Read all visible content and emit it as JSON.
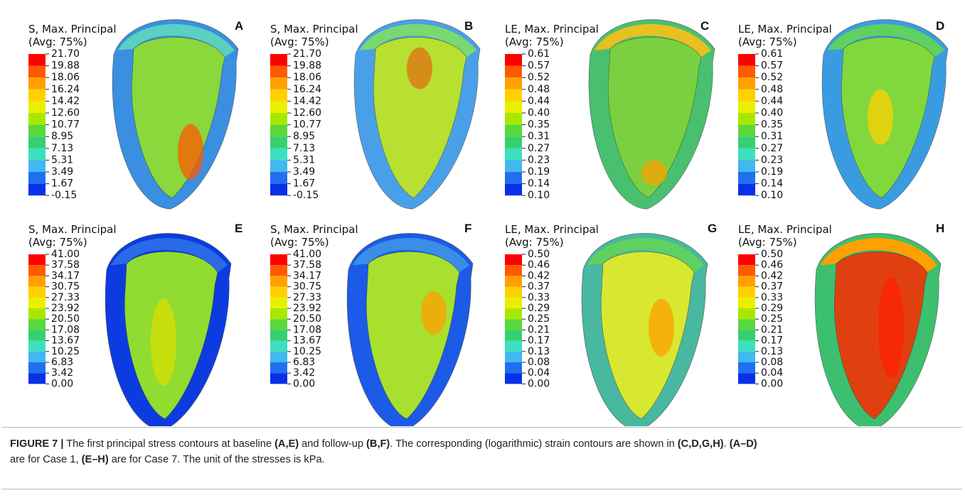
{
  "panels": [
    {
      "label": "A",
      "title": "S, Max. Principal",
      "subtitle": "(Avg: 75%)",
      "ticks": [
        "21.70",
        "19.88",
        "18.06",
        "16.24",
        "14.42",
        "12.60",
        "10.77",
        "8.95",
        "7.13",
        "5.31",
        "3.49",
        "1.67",
        "-0.15"
      ]
    },
    {
      "label": "B",
      "title": "S, Max. Principal",
      "subtitle": "(Avg: 75%)",
      "ticks": [
        "21.70",
        "19.88",
        "18.06",
        "16.24",
        "14.42",
        "12.60",
        "10.77",
        "8.95",
        "7.13",
        "5.31",
        "3.49",
        "1.67",
        "-0.15"
      ]
    },
    {
      "label": "C",
      "title": "LE, Max. Principal",
      "subtitle": "(Avg: 75%)",
      "ticks": [
        "0.61",
        "0.57",
        "0.52",
        "0.48",
        "0.44",
        "0.40",
        "0.35",
        "0.31",
        "0.27",
        "0.23",
        "0.19",
        "0.14",
        "0.10"
      ]
    },
    {
      "label": "D",
      "title": "LE, Max. Principal",
      "subtitle": "(Avg: 75%)",
      "ticks": [
        "0.61",
        "0.57",
        "0.52",
        "0.48",
        "0.44",
        "0.40",
        "0.35",
        "0.31",
        "0.27",
        "0.23",
        "0.19",
        "0.14",
        "0.10"
      ]
    },
    {
      "label": "E",
      "title": "S, Max. Principal",
      "subtitle": "(Avg: 75%)",
      "ticks": [
        "41.00",
        "37.58",
        "34.17",
        "30.75",
        "27.33",
        "23.92",
        "20.50",
        "17.08",
        "13.67",
        "10.25",
        "6.83",
        "3.42",
        "0.00"
      ]
    },
    {
      "label": "F",
      "title": "S, Max. Principal",
      "subtitle": "(Avg: 75%)",
      "ticks": [
        "41.00",
        "37.58",
        "34.17",
        "30.75",
        "27.33",
        "23.92",
        "20.50",
        "17.08",
        "13.67",
        "10.25",
        "6.83",
        "3.42",
        "0.00"
      ]
    },
    {
      "label": "G",
      "title": "LE, Max. Principal",
      "subtitle": "(Avg: 75%)",
      "ticks": [
        "0.50",
        "0.46",
        "0.42",
        "0.37",
        "0.33",
        "0.29",
        "0.25",
        "0.21",
        "0.17",
        "0.13",
        "0.08",
        "0.04",
        "0.00"
      ]
    },
    {
      "label": "H",
      "title": "LE, Max. Principal",
      "subtitle": "(Avg: 75%)",
      "ticks": [
        "0.50",
        "0.46",
        "0.42",
        "0.37",
        "0.33",
        "0.29",
        "0.25",
        "0.21",
        "0.17",
        "0.13",
        "0.08",
        "0.04",
        "0.00"
      ]
    }
  ],
  "caption": [
    [
      {
        "text": "FIGURE 7 |",
        "bold": true
      },
      {
        "text": " The first principal stress contours at baseline ",
        "bold": false
      },
      {
        "text": "(A,E)",
        "bold": true
      },
      {
        "text": " and follow-up ",
        "bold": false
      },
      {
        "text": "(B,F)",
        "bold": true
      },
      {
        "text": ". The corresponding (logarithmic) strain contours are shown in ",
        "bold": false
      },
      {
        "text": "(C,D,G,H)",
        "bold": true
      },
      {
        "text": ". ",
        "bold": false
      },
      {
        "text": "(A–D)",
        "bold": true
      }
    ],
    [
      {
        "text": "are for Case 1, ",
        "bold": false
      },
      {
        "text": "(E–H)",
        "bold": true
      },
      {
        "text": " are for Case 7. The unit of the stresses is kPa.",
        "bold": false
      }
    ]
  ]
}
